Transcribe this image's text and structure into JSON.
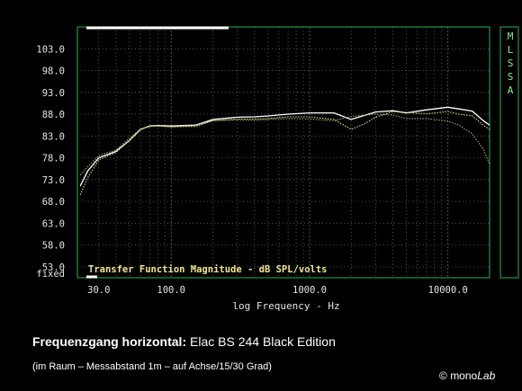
{
  "chart_data": {
    "type": "line",
    "title": "Transfer Function Magnitude - dB SPL/volts",
    "xlabel": "log Frequency - Hz",
    "ylabel": "",
    "xscale": "log",
    "xlim": [
      21,
      20000
    ],
    "ylim": [
      50.5,
      108.0
    ],
    "yticks": [
      103.0,
      98.0,
      93.0,
      88.0,
      83.0,
      78.0,
      73.0,
      68.0,
      63.0,
      58.0,
      53.0
    ],
    "ytick_labels": [
      "103.0",
      "98.0",
      "93.0",
      "88.0",
      "83.0",
      "78.0",
      "73.0",
      "68.0",
      "63.0",
      "58.0",
      "53.0"
    ],
    "ybottom_label": "fixed",
    "xticks": [
      30,
      100,
      1000,
      10000
    ],
    "xtick_labels": [
      "30.0",
      "100.0",
      "1000.0",
      "10000.0"
    ],
    "grid": true,
    "brand_label": "MLSSA",
    "series": [
      {
        "color": "#ffffff",
        "x": [
          22,
          25,
          30,
          40,
          50,
          60,
          70,
          80,
          100,
          150,
          200,
          300,
          400,
          500,
          700,
          1000,
          1500,
          2000,
          3000,
          4000,
          5000,
          7000,
          10000,
          12000,
          15000,
          18000,
          20000
        ],
        "y": [
          71.5,
          75.0,
          78.0,
          79.5,
          82.0,
          84.5,
          85.3,
          85.4,
          85.3,
          85.5,
          86.8,
          87.3,
          87.4,
          87.6,
          88.0,
          88.3,
          88.3,
          86.8,
          88.5,
          88.8,
          88.3,
          89.0,
          89.6,
          89.2,
          88.7,
          86.5,
          85.5
        ]
      },
      {
        "color": "#e6e08a",
        "x": [
          22,
          25,
          30,
          40,
          50,
          60,
          70,
          80,
          100,
          150,
          200,
          300,
          400,
          500,
          700,
          1000,
          1500,
          2000,
          2500,
          3000,
          4000,
          5000,
          7000,
          10000,
          12000,
          15000,
          18000,
          20000
        ],
        "y": [
          69.5,
          73.5,
          77.5,
          79.3,
          82.0,
          84.5,
          85.2,
          85.3,
          85.1,
          85.2,
          86.5,
          86.9,
          86.9,
          87.0,
          87.4,
          87.4,
          86.8,
          84.5,
          85.8,
          87.3,
          88.6,
          88.4,
          88.1,
          88.6,
          88.0,
          87.6,
          85.5,
          84.5
        ]
      },
      {
        "color": "#a8a870",
        "x": [
          22,
          25,
          30,
          40,
          50,
          60,
          70,
          80,
          100,
          150,
          200,
          300,
          400,
          500,
          700,
          1000,
          1500,
          2000,
          3000,
          4000,
          5000,
          7000,
          10000,
          12000,
          15000,
          18000,
          20000
        ],
        "y": [
          74.0,
          76.0,
          78.5,
          79.8,
          82.5,
          84.6,
          85.2,
          85.3,
          85.1,
          85.4,
          86.5,
          86.7,
          86.6,
          86.8,
          87.0,
          86.9,
          86.5,
          87.5,
          88.0,
          87.8,
          87.0,
          87.0,
          86.4,
          85.5,
          83.5,
          80.0,
          76.5
        ]
      }
    ]
  },
  "caption": {
    "title": "Frequenzgang horizontal:",
    "subject": "Elac BS 244 Black Edition",
    "subtitle": "(im Raum – Messabstand 1m – auf Achse/15/30 Grad)"
  },
  "credit": {
    "symbol": "©",
    "mono": "mono",
    "lab": "Lab"
  },
  "colors": {
    "background": "#000000",
    "grid": "#666666",
    "axis_frame": "#1f8a3b",
    "brand_text": "#88ee88",
    "tick_text": "#e6e6e6",
    "title_text": "#f0e68c",
    "top_bar": "#ffffff"
  }
}
